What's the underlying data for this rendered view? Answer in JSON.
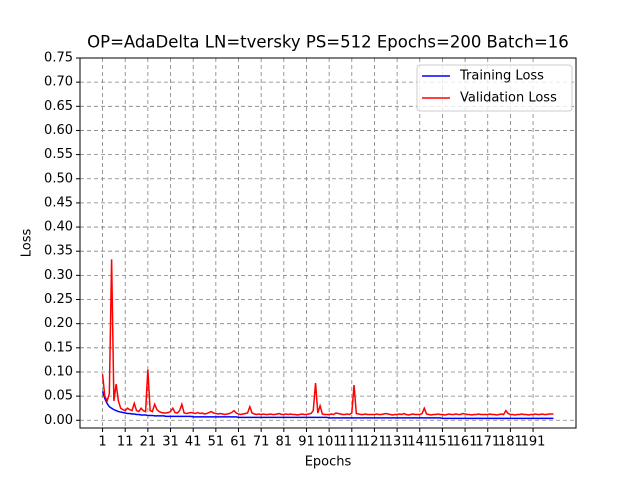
{
  "chart_data": {
    "type": "line",
    "title": "OP=AdaDelta LN=tversky PS=512 Epochs=200 Batch=16",
    "x_label": "Epochs",
    "y_label": "Loss",
    "x": [
      1,
      2,
      3,
      4,
      5,
      6,
      7,
      8,
      9,
      10,
      11,
      12,
      13,
      14,
      15,
      16,
      17,
      18,
      19,
      20,
      21,
      22,
      23,
      24,
      25,
      26,
      27,
      28,
      29,
      30,
      31,
      32,
      33,
      34,
      35,
      36,
      37,
      38,
      39,
      40,
      41,
      42,
      43,
      44,
      45,
      46,
      47,
      48,
      49,
      50,
      51,
      52,
      53,
      54,
      55,
      56,
      57,
      58,
      59,
      60,
      61,
      62,
      63,
      64,
      65,
      66,
      67,
      68,
      69,
      70,
      71,
      72,
      73,
      74,
      75,
      76,
      77,
      78,
      79,
      80,
      81,
      82,
      83,
      84,
      85,
      86,
      87,
      88,
      89,
      90,
      91,
      92,
      93,
      94,
      95,
      96,
      97,
      98,
      99,
      100,
      101,
      102,
      103,
      104,
      105,
      106,
      107,
      108,
      109,
      110,
      111,
      112,
      113,
      114,
      115,
      116,
      117,
      118,
      119,
      120,
      121,
      122,
      123,
      124,
      125,
      126,
      127,
      128,
      129,
      130,
      131,
      132,
      133,
      134,
      135,
      136,
      137,
      138,
      139,
      140,
      141,
      142,
      143,
      144,
      145,
      146,
      147,
      148,
      149,
      150,
      151,
      152,
      153,
      154,
      155,
      156,
      157,
      158,
      159,
      160,
      161,
      162,
      163,
      164,
      165,
      166,
      167,
      168,
      169,
      170,
      171,
      172,
      173,
      174,
      175,
      176,
      177,
      178,
      179,
      180,
      181,
      182,
      183,
      184,
      185,
      186,
      187,
      188,
      189,
      190,
      191,
      192,
      193,
      194,
      195,
      196,
      197,
      198,
      199,
      200
    ],
    "series": [
      {
        "name": "Training Loss",
        "color": "#0000ff",
        "values": [
          0.06,
          0.045,
          0.035,
          0.028,
          0.025,
          0.022,
          0.02,
          0.018,
          0.017,
          0.016,
          0.015,
          0.014,
          0.014,
          0.013,
          0.013,
          0.012,
          0.012,
          0.011,
          0.011,
          0.011,
          0.01,
          0.01,
          0.01,
          0.009,
          0.009,
          0.009,
          0.009,
          0.009,
          0.008,
          0.008,
          0.008,
          0.008,
          0.008,
          0.008,
          0.008,
          0.008,
          0.008,
          0.008,
          0.008,
          0.008,
          0.007,
          0.007,
          0.007,
          0.007,
          0.007,
          0.007,
          0.007,
          0.007,
          0.007,
          0.007,
          0.007,
          0.007,
          0.007,
          0.007,
          0.007,
          0.007,
          0.007,
          0.007,
          0.007,
          0.007,
          0.006,
          0.006,
          0.006,
          0.006,
          0.006,
          0.006,
          0.006,
          0.006,
          0.006,
          0.006,
          0.006,
          0.006,
          0.006,
          0.006,
          0.006,
          0.006,
          0.006,
          0.006,
          0.006,
          0.006,
          0.006,
          0.006,
          0.006,
          0.006,
          0.006,
          0.006,
          0.006,
          0.006,
          0.006,
          0.006,
          0.006,
          0.006,
          0.006,
          0.006,
          0.006,
          0.006,
          0.006,
          0.006,
          0.006,
          0.006,
          0.005,
          0.005,
          0.005,
          0.005,
          0.005,
          0.005,
          0.005,
          0.005,
          0.005,
          0.005,
          0.005,
          0.005,
          0.005,
          0.005,
          0.005,
          0.005,
          0.005,
          0.005,
          0.005,
          0.005,
          0.005,
          0.005,
          0.005,
          0.005,
          0.005,
          0.005,
          0.005,
          0.005,
          0.005,
          0.005,
          0.005,
          0.005,
          0.005,
          0.005,
          0.005,
          0.005,
          0.005,
          0.005,
          0.005,
          0.005,
          0.005,
          0.005,
          0.005,
          0.005,
          0.005,
          0.005,
          0.005,
          0.005,
          0.005,
          0.005,
          0.004,
          0.004,
          0.004,
          0.004,
          0.004,
          0.004,
          0.004,
          0.004,
          0.004,
          0.004,
          0.004,
          0.004,
          0.004,
          0.004,
          0.004,
          0.004,
          0.004,
          0.004,
          0.004,
          0.004,
          0.004,
          0.004,
          0.004,
          0.004,
          0.004,
          0.004,
          0.004,
          0.004,
          0.004,
          0.004,
          0.004,
          0.004,
          0.004,
          0.004,
          0.004,
          0.004,
          0.004,
          0.004,
          0.004,
          0.004,
          0.004,
          0.004,
          0.004,
          0.004,
          0.004,
          0.004,
          0.004,
          0.004,
          0.004,
          0.004
        ]
      },
      {
        "name": "Validation Loss",
        "color": "#ff0000",
        "values": [
          0.095,
          0.05,
          0.04,
          0.055,
          0.333,
          0.04,
          0.075,
          0.04,
          0.025,
          0.022,
          0.02,
          0.025,
          0.022,
          0.02,
          0.035,
          0.02,
          0.018,
          0.025,
          0.02,
          0.018,
          0.105,
          0.02,
          0.018,
          0.033,
          0.022,
          0.018,
          0.016,
          0.015,
          0.015,
          0.016,
          0.018,
          0.025,
          0.016,
          0.015,
          0.02,
          0.033,
          0.015,
          0.014,
          0.015,
          0.016,
          0.015,
          0.014,
          0.016,
          0.014,
          0.015,
          0.013,
          0.014,
          0.016,
          0.018,
          0.015,
          0.014,
          0.013,
          0.014,
          0.013,
          0.012,
          0.013,
          0.014,
          0.016,
          0.02,
          0.015,
          0.013,
          0.012,
          0.013,
          0.014,
          0.015,
          0.028,
          0.015,
          0.013,
          0.012,
          0.013,
          0.012,
          0.013,
          0.012,
          0.012,
          0.013,
          0.012,
          0.012,
          0.013,
          0.014,
          0.012,
          0.012,
          0.013,
          0.012,
          0.013,
          0.012,
          0.012,
          0.011,
          0.012,
          0.013,
          0.012,
          0.012,
          0.013,
          0.014,
          0.02,
          0.077,
          0.015,
          0.03,
          0.013,
          0.012,
          0.012,
          0.012,
          0.013,
          0.012,
          0.015,
          0.014,
          0.013,
          0.012,
          0.012,
          0.013,
          0.012,
          0.015,
          0.073,
          0.014,
          0.013,
          0.012,
          0.012,
          0.013,
          0.012,
          0.012,
          0.012,
          0.012,
          0.013,
          0.012,
          0.012,
          0.013,
          0.014,
          0.013,
          0.012,
          0.011,
          0.012,
          0.012,
          0.013,
          0.012,
          0.014,
          0.012,
          0.011,
          0.012,
          0.013,
          0.012,
          0.012,
          0.012,
          0.014,
          0.025,
          0.013,
          0.012,
          0.011,
          0.012,
          0.012,
          0.013,
          0.012,
          0.012,
          0.011,
          0.012,
          0.013,
          0.012,
          0.012,
          0.013,
          0.012,
          0.012,
          0.014,
          0.013,
          0.012,
          0.012,
          0.011,
          0.012,
          0.012,
          0.013,
          0.012,
          0.012,
          0.012,
          0.012,
          0.013,
          0.012,
          0.012,
          0.011,
          0.012,
          0.013,
          0.012,
          0.02,
          0.014,
          0.012,
          0.012,
          0.011,
          0.012,
          0.012,
          0.013,
          0.012,
          0.012,
          0.011,
          0.012,
          0.012,
          0.013,
          0.012,
          0.012,
          0.013,
          0.012,
          0.012,
          0.013,
          0.013,
          0.013
        ]
      }
    ],
    "xlim": [
      -8.95,
      209.95
    ],
    "ylim": [
      -0.016,
      0.75
    ],
    "xticks": [
      1,
      11,
      21,
      31,
      41,
      51,
      61,
      71,
      81,
      91,
      101,
      111,
      121,
      131,
      141,
      151,
      161,
      171,
      181,
      191
    ],
    "yticks": [
      {
        "value": 0,
        "label": "0.00"
      },
      {
        "value": 0.05,
        "label": "0.05"
      },
      {
        "value": 0.1,
        "label": "0.10"
      },
      {
        "value": 0.15,
        "label": "0.15"
      },
      {
        "value": 0.2,
        "label": "0.20"
      },
      {
        "value": 0.25,
        "label": "0.25"
      },
      {
        "value": 0.3,
        "label": "0.30"
      },
      {
        "value": 0.35,
        "label": "0.35"
      },
      {
        "value": 0.4,
        "label": "0.40"
      },
      {
        "value": 0.45,
        "label": "0.45"
      },
      {
        "value": 0.5,
        "label": "0.50"
      },
      {
        "value": 0.55,
        "label": "0.55"
      },
      {
        "value": 0.6,
        "label": "0.60"
      },
      {
        "value": 0.65,
        "label": "0.65"
      },
      {
        "value": 0.7,
        "label": "0.70"
      },
      {
        "value": 0.75,
        "label": "0.75"
      }
    ],
    "grid": true,
    "legend": "upper right"
  }
}
